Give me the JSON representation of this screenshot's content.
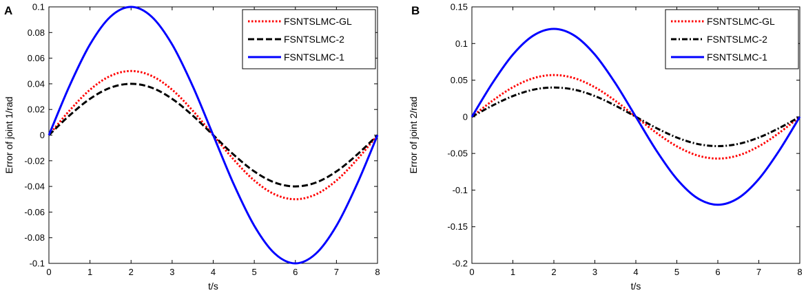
{
  "chart_data": [
    {
      "type": "line",
      "panel_label": "A",
      "xlabel": "t/s",
      "ylabel": "Error of joint 1/rad",
      "xlim": [
        0,
        8
      ],
      "ylim": [
        -0.1,
        0.1
      ],
      "xticks": [
        0,
        1,
        2,
        3,
        4,
        5,
        6,
        7,
        8
      ],
      "yticks": [
        -0.1,
        -0.08,
        -0.06,
        -0.04,
        -0.02,
        0,
        0.02,
        0.04,
        0.06,
        0.08,
        0.1
      ],
      "ytick_labels": [
        "-0.1",
        "-0.08",
        "-0.06",
        "-0.04",
        "-0.02",
        "0",
        "0.02",
        "0.04",
        "0.06",
        "0.08",
        "0.1"
      ],
      "xtick_labels": [
        "0",
        "1",
        "2",
        "3",
        "4",
        "5",
        "6",
        "7",
        "8"
      ],
      "legend_position": "top-right",
      "x": [
        0,
        0.5,
        1,
        1.5,
        2,
        2.5,
        3,
        3.5,
        4,
        4.5,
        5,
        5.5,
        6,
        6.5,
        7,
        7.5,
        8
      ],
      "series": [
        {
          "name": "FSNTSLMC-GL",
          "color": "#ff0000",
          "style": "dotted",
          "values": [
            0,
            0.0191,
            0.0354,
            0.0462,
            0.05,
            0.0462,
            0.0354,
            0.0191,
            0,
            -0.0191,
            -0.0354,
            -0.0462,
            -0.05,
            -0.0462,
            -0.0354,
            -0.0191,
            0
          ]
        },
        {
          "name": "FSNTSLMC-2",
          "color": "#000000",
          "style": "dashed",
          "values": [
            0,
            0.0153,
            0.0283,
            0.037,
            0.04,
            0.037,
            0.0283,
            0.0153,
            0,
            -0.0153,
            -0.0283,
            -0.037,
            -0.04,
            -0.037,
            -0.0283,
            -0.0153,
            0
          ]
        },
        {
          "name": "FSNTSLMC-1",
          "color": "#0000ff",
          "style": "solid",
          "values": [
            0,
            0.0383,
            0.0707,
            0.0924,
            0.1,
            0.0924,
            0.0707,
            0.0383,
            0,
            -0.0383,
            -0.0707,
            -0.0924,
            -0.1,
            -0.0924,
            -0.0707,
            -0.0383,
            0
          ]
        }
      ]
    },
    {
      "type": "line",
      "panel_label": "B",
      "xlabel": "t/s",
      "ylabel": "Error of joint 2/rad",
      "xlim": [
        0,
        8
      ],
      "ylim": [
        -0.2,
        0.15
      ],
      "xticks": [
        0,
        1,
        2,
        3,
        4,
        5,
        6,
        7,
        8
      ],
      "yticks": [
        -0.2,
        -0.15,
        -0.1,
        -0.05,
        0,
        0.05,
        0.1,
        0.15
      ],
      "ytick_labels": [
        "-0.2",
        "-0.15",
        "-0.1",
        "-0.05",
        "0",
        "0.05",
        "0.1",
        "0.15"
      ],
      "xtick_labels": [
        "0",
        "1",
        "2",
        "3",
        "4",
        "5",
        "6",
        "7",
        "8"
      ],
      "legend_position": "top-right",
      "x": [
        0,
        0.5,
        1,
        1.5,
        2,
        2.5,
        3,
        3.5,
        4,
        4.5,
        5,
        5.5,
        6,
        6.5,
        7,
        7.5,
        8
      ],
      "series": [
        {
          "name": "FSNTSLMC-GL",
          "color": "#ff0000",
          "style": "dotted",
          "values": [
            0,
            0.0218,
            0.0403,
            0.0527,
            0.057,
            0.0527,
            0.0403,
            0.0218,
            0,
            -0.0218,
            -0.0403,
            -0.0527,
            -0.057,
            -0.0527,
            -0.0403,
            -0.0218,
            0
          ]
        },
        {
          "name": "FSNTSLMC-2",
          "color": "#000000",
          "style": "dashdot",
          "values": [
            0,
            0.0153,
            0.0283,
            0.037,
            0.04,
            0.037,
            0.0283,
            0.0153,
            0,
            -0.0153,
            -0.0283,
            -0.037,
            -0.04,
            -0.037,
            -0.0283,
            -0.0153,
            0
          ]
        },
        {
          "name": "FSNTSLMC-1",
          "color": "#0000ff",
          "style": "solid",
          "values": [
            0,
            0.0459,
            0.0849,
            0.1109,
            0.12,
            0.1109,
            0.0849,
            0.0459,
            0,
            -0.0459,
            -0.0849,
            -0.1109,
            -0.12,
            -0.1109,
            -0.0849,
            -0.0459,
            0
          ]
        }
      ]
    }
  ]
}
